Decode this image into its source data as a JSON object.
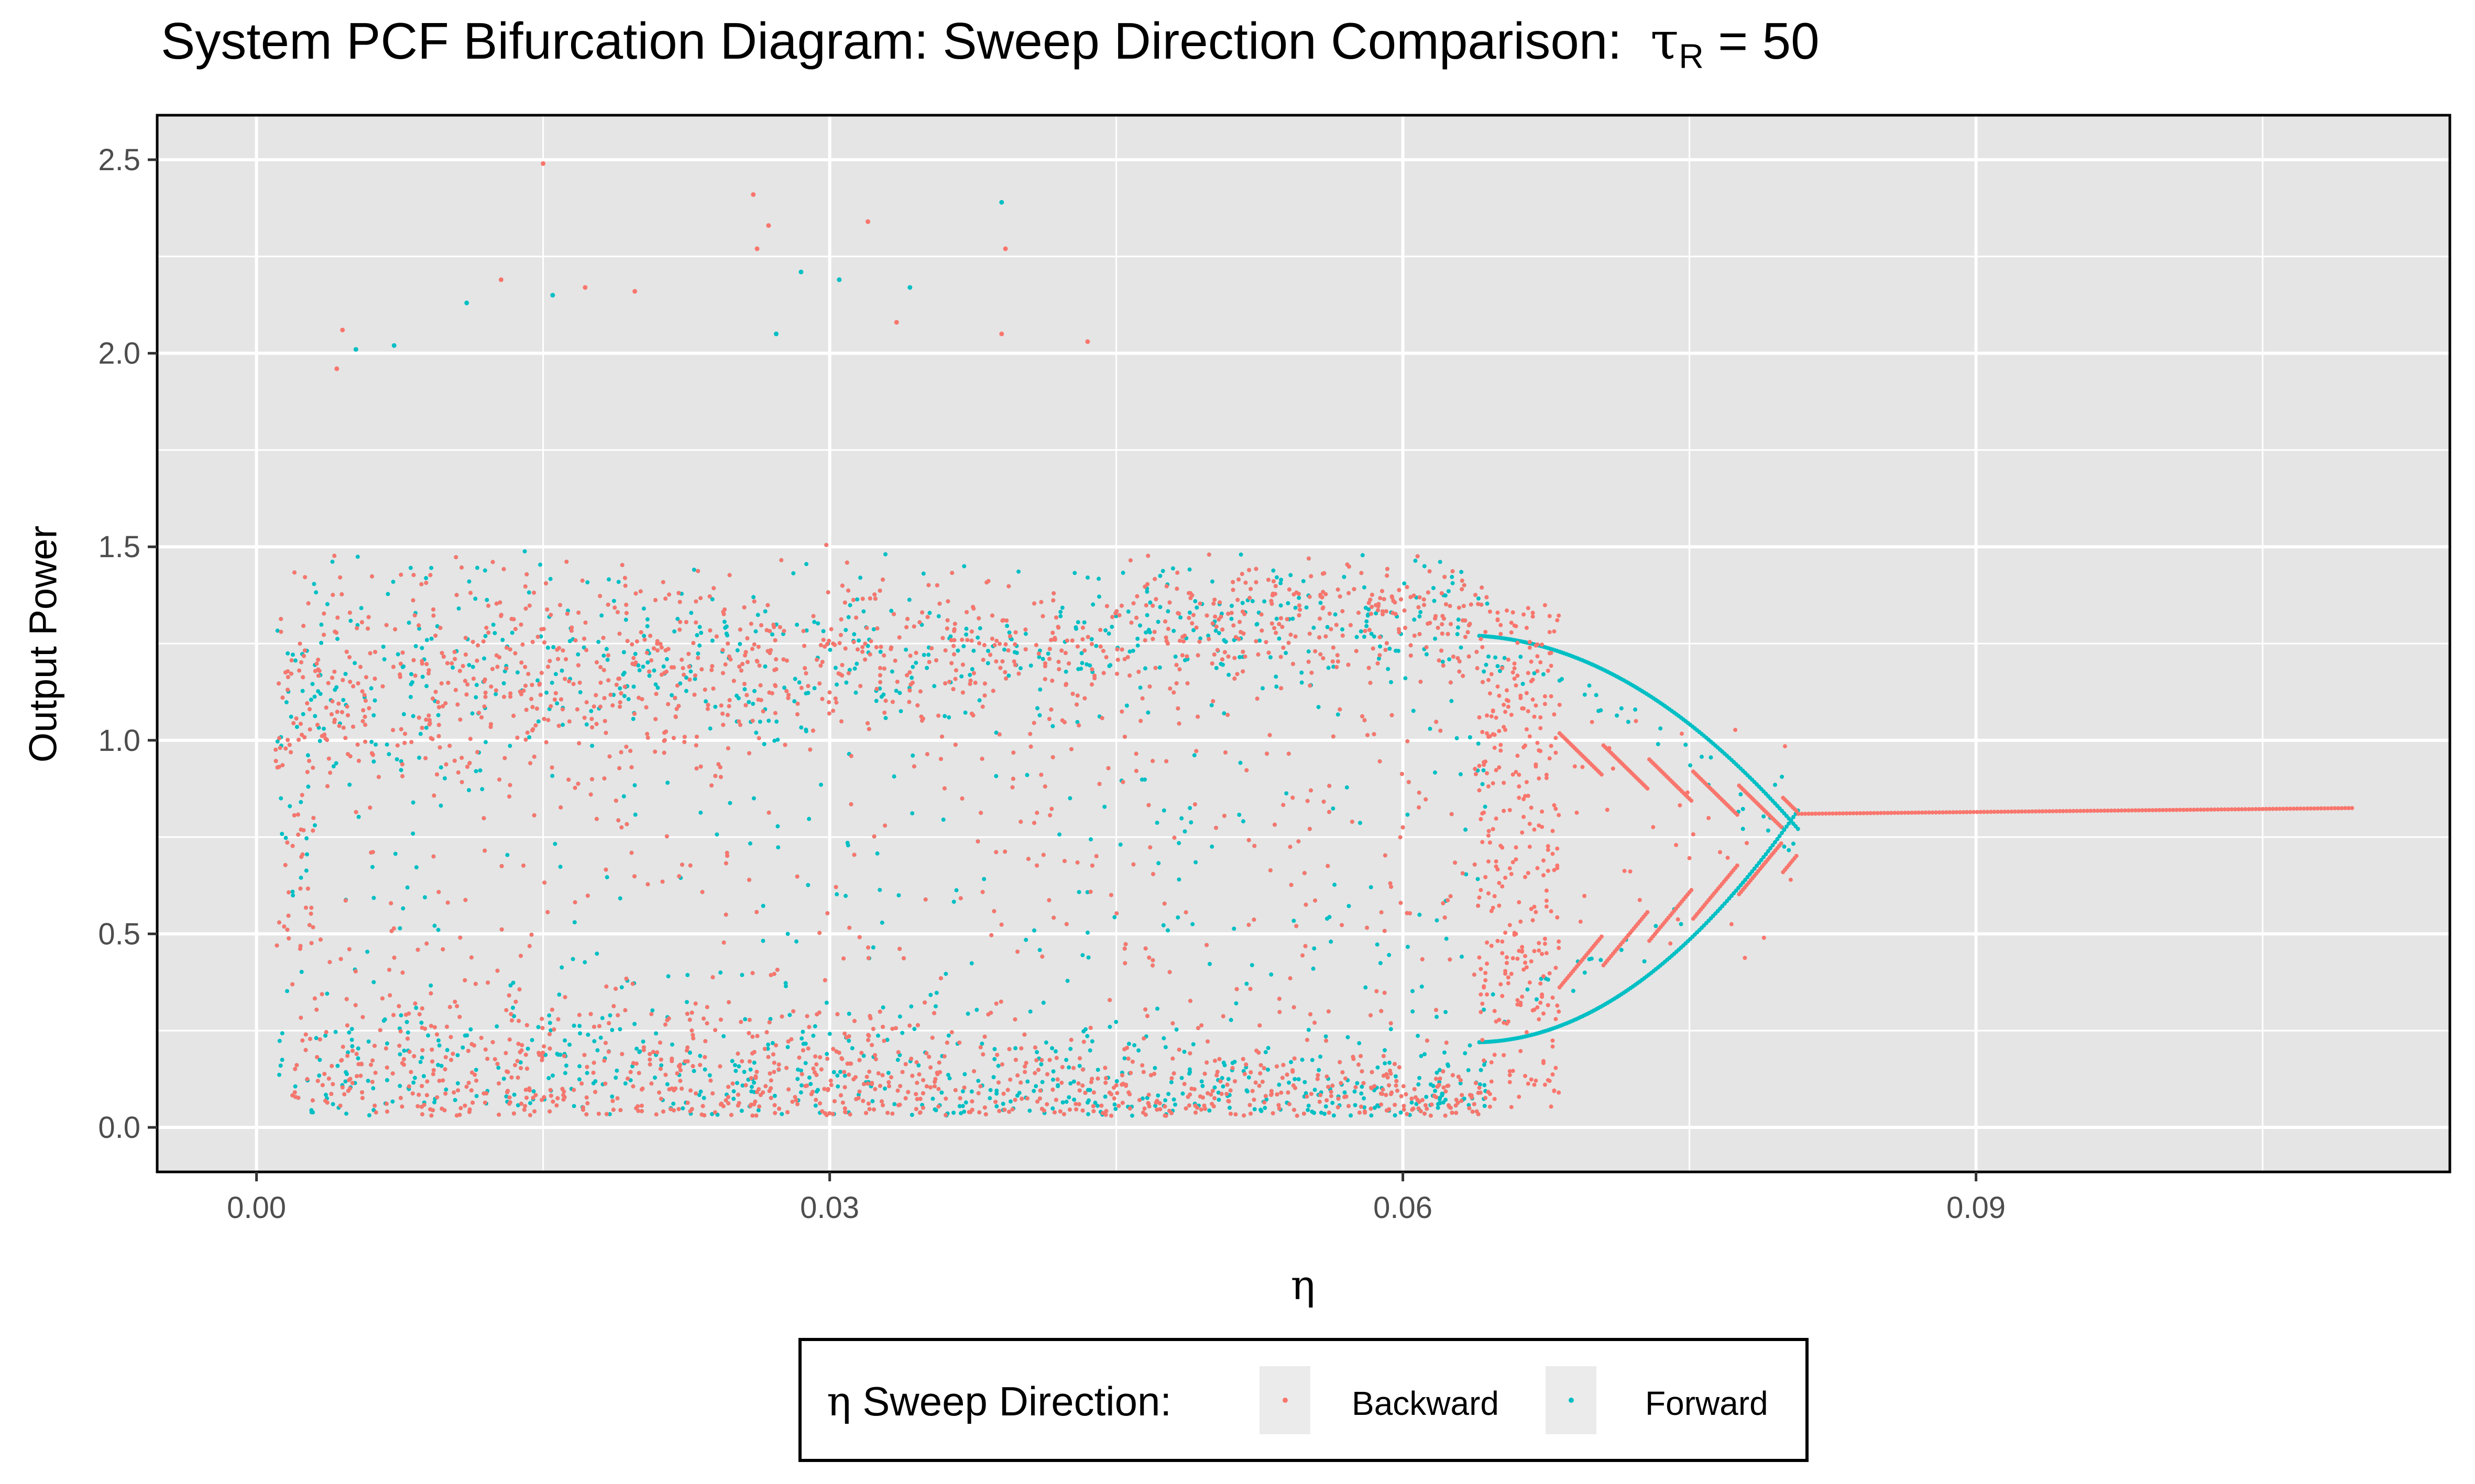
{
  "chart_data": {
    "type": "scatter",
    "title_prefix": "System PCF Bifurcation Diagram: Sweep Direction Comparison:",
    "title_symbol": "τ",
    "title_subscript": "R",
    "title_suffix": " = 50",
    "xlabel": "η",
    "ylabel": "Output Power",
    "xlim": [
      -0.0052,
      0.1148
    ],
    "ylim": [
      -0.115,
      2.615
    ],
    "xticks": [
      0.0,
      0.03,
      0.06,
      0.09
    ],
    "xtick_labels": [
      "0.00",
      "0.03",
      "0.06",
      "0.09"
    ],
    "yticks": [
      0.0,
      0.5,
      1.0,
      1.5,
      2.0,
      2.5
    ],
    "ytick_labels": [
      "0.0",
      "0.5",
      "1.0",
      "1.5",
      "2.0",
      "2.5"
    ],
    "grid": true,
    "legend": {
      "position": "bottom",
      "title_symbol": "η",
      "title_text": " Sweep Direction:",
      "entries": [
        "Backward",
        "Forward"
      ]
    },
    "series": [
      {
        "name": "Backward",
        "color": "#F8766D",
        "regions": {
          "chaotic": {
            "x": [
              0.001,
              0.064
            ],
            "y": [
              0.0,
              1.65
            ]
          },
          "period_window": {
            "x": [
              0.064,
              0.081
            ],
            "upper": [
              1.28,
              0.8
            ],
            "lower": [
              0.2,
              0.62
            ]
          },
          "fixed_point": {
            "x": [
              0.0807,
              0.1098
            ],
            "y": [
              0.81,
              0.825
            ]
          }
        },
        "points": [
          {
            "x": 0.015,
            "y": 2.49
          },
          {
            "x": 0.026,
            "y": 2.41
          },
          {
            "x": 0.0268,
            "y": 2.33
          },
          {
            "x": 0.032,
            "y": 2.34
          },
          {
            "x": 0.0262,
            "y": 2.27
          },
          {
            "x": 0.0392,
            "y": 2.27
          },
          {
            "x": 0.0128,
            "y": 2.19
          },
          {
            "x": 0.0172,
            "y": 2.17
          },
          {
            "x": 0.0198,
            "y": 2.16
          },
          {
            "x": 0.0045,
            "y": 2.06
          },
          {
            "x": 0.039,
            "y": 2.05
          },
          {
            "x": 0.0435,
            "y": 2.03
          },
          {
            "x": 0.0042,
            "y": 1.96
          },
          {
            "x": 0.0335,
            "y": 2.08
          }
        ]
      },
      {
        "name": "Forward",
        "color": "#00BFC4",
        "regions": {
          "chaotic": {
            "x": [
              0.001,
              0.064
            ],
            "y": [
              0.0,
              1.65
            ]
          },
          "period_window": {
            "x": [
              0.064,
              0.0807
            ],
            "upper": [
              1.27,
              0.82
            ],
            "lower": [
              0.22,
              0.8
            ]
          }
        },
        "points": [
          {
            "x": 0.039,
            "y": 2.39
          },
          {
            "x": 0.0155,
            "y": 2.15
          },
          {
            "x": 0.011,
            "y": 2.13
          },
          {
            "x": 0.0305,
            "y": 2.19
          },
          {
            "x": 0.0285,
            "y": 2.21
          },
          {
            "x": 0.0072,
            "y": 2.02
          },
          {
            "x": 0.0052,
            "y": 2.01
          },
          {
            "x": 0.0342,
            "y": 2.17
          },
          {
            "x": 0.0272,
            "y": 2.05
          }
        ]
      }
    ]
  }
}
